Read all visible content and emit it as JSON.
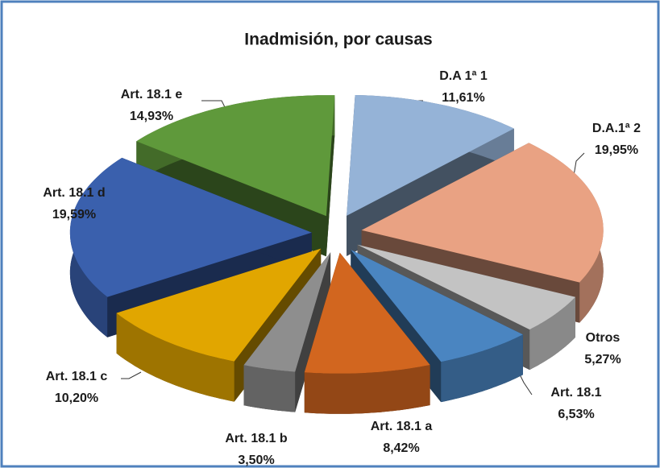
{
  "chart_data": {
    "type": "pie3d",
    "title": "Inadmisión, por causas",
    "categories": [
      "D.A 1ª 1",
      "D.A.1ª 2",
      "Otros",
      "Art. 18.1",
      "Art. 18.1 a",
      "Art. 18.1 b",
      "Art. 18.1 c",
      "Art. 18.1 d",
      "Art. 18.1 e"
    ],
    "values": [
      11.61,
      19.95,
      5.27,
      6.53,
      8.42,
      3.5,
      10.2,
      19.59,
      14.93
    ],
    "value_labels": [
      "11,61%",
      "19,95%",
      "5,27%",
      "6,53%",
      "8,42%",
      "3,50%",
      "10,20%",
      "19,59%",
      "14,93%"
    ],
    "colors": [
      "#95b3d7",
      "#e9a283",
      "#c3c3c3",
      "#4a85c1",
      "#d2661f",
      "#8e8e8e",
      "#e1a600",
      "#3a60ad",
      "#5f993b"
    ]
  }
}
